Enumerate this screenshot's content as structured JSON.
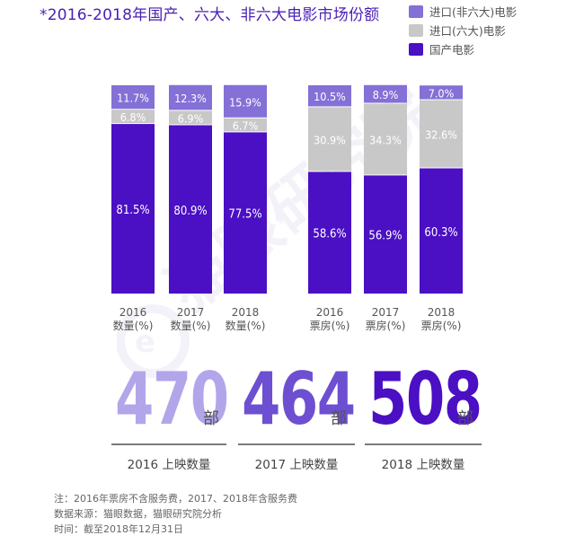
{
  "title": "*2016-2018年国产、六大、非六大电影市场份额",
  "legend": [
    {
      "label": "进口(非六大)电影",
      "color": "#8470d6"
    },
    {
      "label": "进口(六大)电影",
      "color": "#c8c8c8"
    },
    {
      "label": "国产电影",
      "color": "#4b0fc4"
    }
  ],
  "chart_data": {
    "type": "bar",
    "stacked": true,
    "percent_scale": true,
    "panels": [
      {
        "categories": [
          "2016\n数量(%)",
          "2017\n数量(%)",
          "2018\n数量(%)"
        ],
        "series": [
          {
            "name": "国产电影",
            "values": [
              81.5,
              80.9,
              77.5
            ],
            "color": "#4b0fc4"
          },
          {
            "name": "进口(六大)电影",
            "values": [
              6.8,
              6.9,
              6.7
            ],
            "color": "#c8c8c8"
          },
          {
            "name": "进口(非六大)电影",
            "values": [
              11.7,
              12.3,
              15.9
            ],
            "color": "#8470d6"
          }
        ],
        "labels": [
          [
            "81.5%",
            "80.9%",
            "77.5%"
          ],
          [
            "6.8%",
            "6.9%",
            "6.7%"
          ],
          [
            "11.7%",
            "12.3%",
            "15.9%"
          ]
        ]
      },
      {
        "categories": [
          "2016\n票房(%)",
          "2017\n票房(%)",
          "2018\n票房(%)"
        ],
        "series": [
          {
            "name": "国产电影",
            "values": [
              58.6,
              56.9,
              60.3
            ],
            "color": "#4b0fc4"
          },
          {
            "name": "进口(六大)电影",
            "values": [
              30.9,
              34.3,
              32.6
            ],
            "color": "#c8c8c8"
          },
          {
            "name": "进口(非六大)电影",
            "values": [
              10.5,
              8.9,
              7.0
            ],
            "color": "#8470d6"
          }
        ],
        "labels": [
          [
            "58.6%",
            "56.9%",
            "60.3%"
          ],
          [
            "30.9%",
            "34.3%",
            "32.6%"
          ],
          [
            "10.5%",
            "8.9%",
            "7.0%"
          ]
        ]
      }
    ]
  },
  "stats": [
    {
      "value": "470",
      "unit": "部",
      "label": "2016 上映数量",
      "color": "#b3a5ea"
    },
    {
      "value": "464",
      "unit": "部",
      "label": "2017 上映数量",
      "color": "#6d4fd1"
    },
    {
      "value": "508",
      "unit": "部",
      "label": "2018 上映数量",
      "color": "#4b0fc4"
    }
  ],
  "notes": [
    "注：2016年票房不含服务费，2017、2018年含服务费",
    "数据来源：猫眼数据，猫眼研究院分析",
    "时间：截至2018年12月31日"
  ],
  "watermark_text": "猫眼研究院"
}
